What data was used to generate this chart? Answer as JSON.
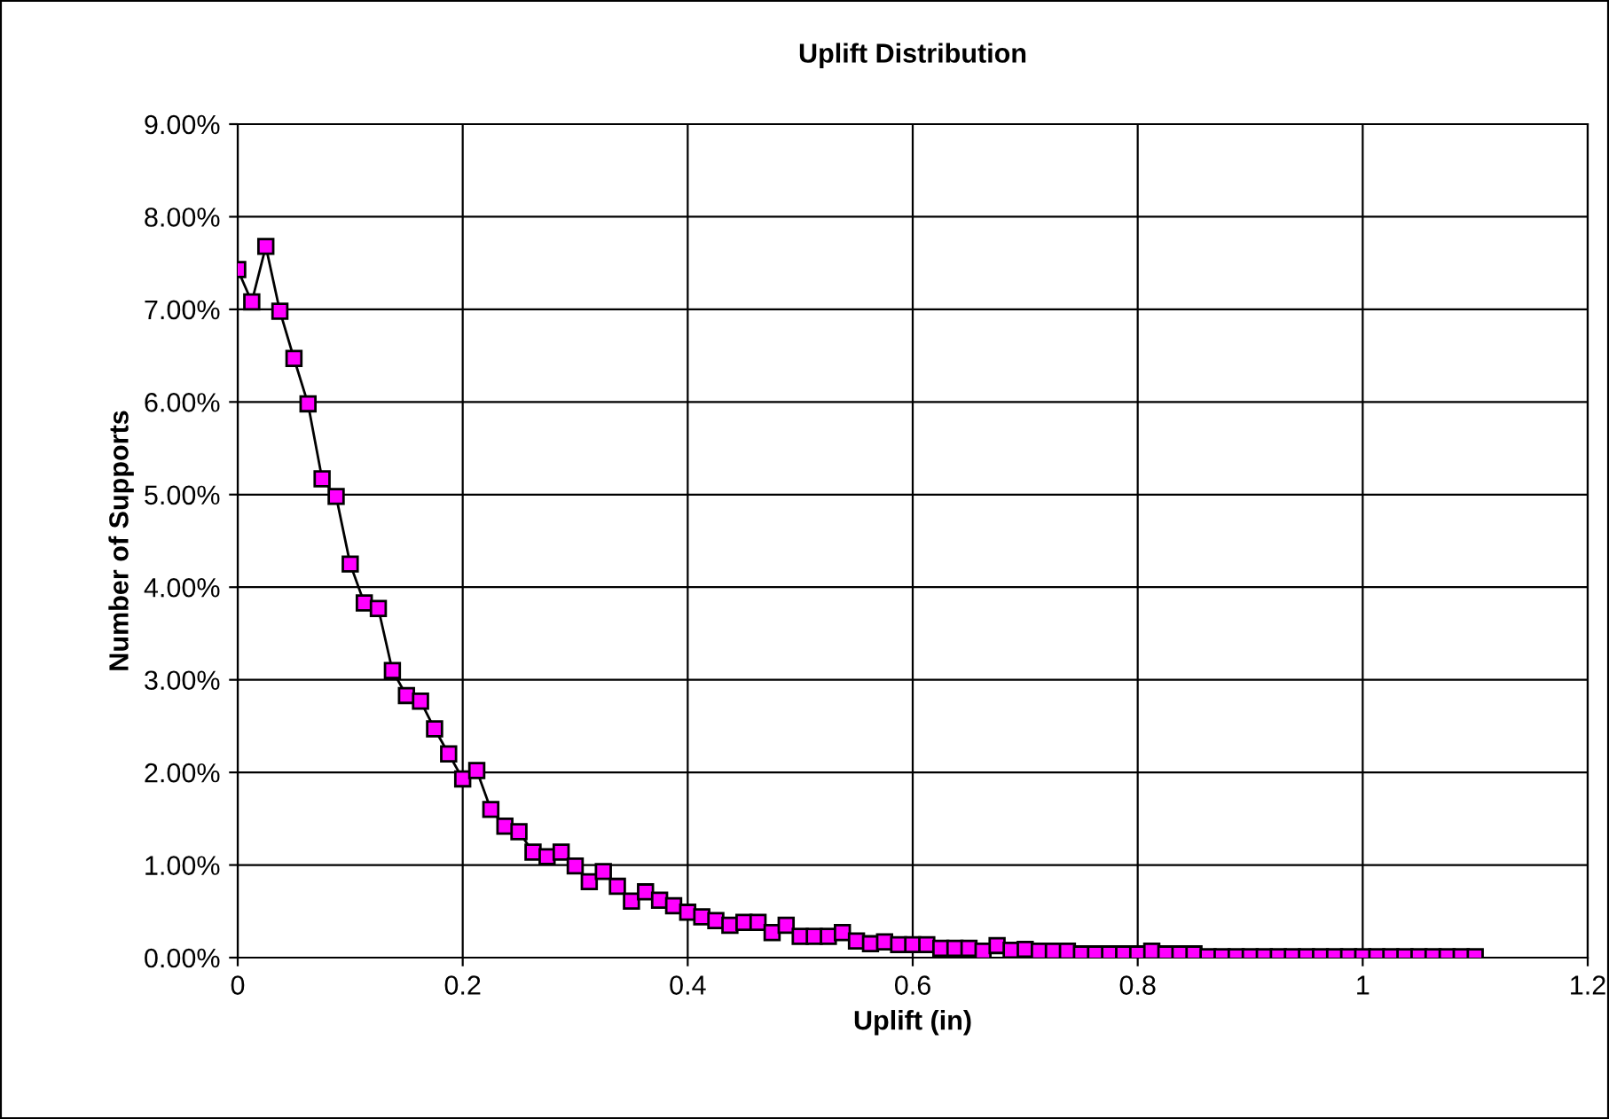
{
  "chart_data": {
    "type": "line",
    "title": "Uplift Distribution",
    "xlabel": "Uplift (in)",
    "ylabel": "Number of Supports",
    "x": [
      0,
      0.0125,
      0.025,
      0.0375,
      0.05,
      0.0625,
      0.075,
      0.0875,
      0.1,
      0.1125,
      0.125,
      0.1375,
      0.15,
      0.1625,
      0.175,
      0.1875,
      0.2,
      0.2125,
      0.225,
      0.2375,
      0.25,
      0.2625,
      0.275,
      0.2875,
      0.3,
      0.3125,
      0.325,
      0.3375,
      0.35,
      0.3625,
      0.375,
      0.3875,
      0.4,
      0.4125,
      0.425,
      0.4375,
      0.45,
      0.4625,
      0.475,
      0.4875,
      0.5,
      0.5125,
      0.525,
      0.5375,
      0.55,
      0.5625,
      0.575,
      0.5875,
      0.6,
      0.6125,
      0.625,
      0.6375,
      0.65,
      0.6625,
      0.675,
      0.6875,
      0.7,
      0.7125,
      0.725,
      0.7375,
      0.75,
      0.7625,
      0.775,
      0.7875,
      0.8,
      0.8125,
      0.825,
      0.8375,
      0.85,
      0.8625,
      0.875,
      0.8875,
      0.9,
      0.9125,
      0.925,
      0.9375,
      0.95,
      0.9625,
      0.975,
      0.9875,
      1,
      1.0125,
      1.025,
      1.0375,
      1.05,
      1.0625,
      1.075,
      1.0875,
      1.1
    ],
    "series": [
      {
        "color": "#ff00ff",
        "values": [
          7.43,
          7.08,
          7.68,
          6.98,
          6.47,
          5.98,
          5.17,
          4.98,
          4.25,
          3.83,
          3.77,
          3.1,
          2.83,
          2.77,
          2.47,
          2.2,
          1.93,
          2.02,
          1.6,
          1.42,
          1.36,
          1.14,
          1.09,
          1.14,
          0.99,
          0.82,
          0.93,
          0.77,
          0.61,
          0.71,
          0.62,
          0.56,
          0.49,
          0.44,
          0.4,
          0.35,
          0.38,
          0.38,
          0.27,
          0.35,
          0.23,
          0.23,
          0.23,
          0.27,
          0.18,
          0.15,
          0.17,
          0.14,
          0.14,
          0.14,
          0.1,
          0.1,
          0.1,
          0.07,
          0.13,
          0.08,
          0.09,
          0.07,
          0.07,
          0.07,
          0.04,
          0.04,
          0.04,
          0.04,
          0.04,
          0.07,
          0.04,
          0.04,
          0.04,
          0.01,
          0.01,
          0.01,
          0.01,
          0.01,
          0.01,
          0.01,
          0.01,
          0.01,
          0.01,
          0.01,
          0.01,
          0.01,
          0.01,
          0.01,
          0.01,
          0.01,
          0.01,
          0.01,
          0.01
        ]
      }
    ],
    "xlim": [
      0,
      1.2
    ],
    "xticks": [
      0,
      0.2,
      0.4,
      0.6,
      0.8,
      1,
      1.2
    ],
    "ylim": [
      0,
      9
    ],
    "yticks": [
      {
        "value": 0,
        "label": "0.00%"
      },
      {
        "value": 1,
        "label": "1.00%"
      },
      {
        "value": 2,
        "label": "2.00%"
      },
      {
        "value": 3,
        "label": "3.00%"
      },
      {
        "value": 4,
        "label": "4.00%"
      },
      {
        "value": 5,
        "label": "5.00%"
      },
      {
        "value": 6,
        "label": "6.00%"
      },
      {
        "value": 7,
        "label": "7.00%"
      },
      {
        "value": 8,
        "label": "8.00%"
      },
      {
        "value": 9,
        "label": "9.00%"
      }
    ],
    "grid": true,
    "marker": "square",
    "line_style": "solid",
    "legend": false
  }
}
